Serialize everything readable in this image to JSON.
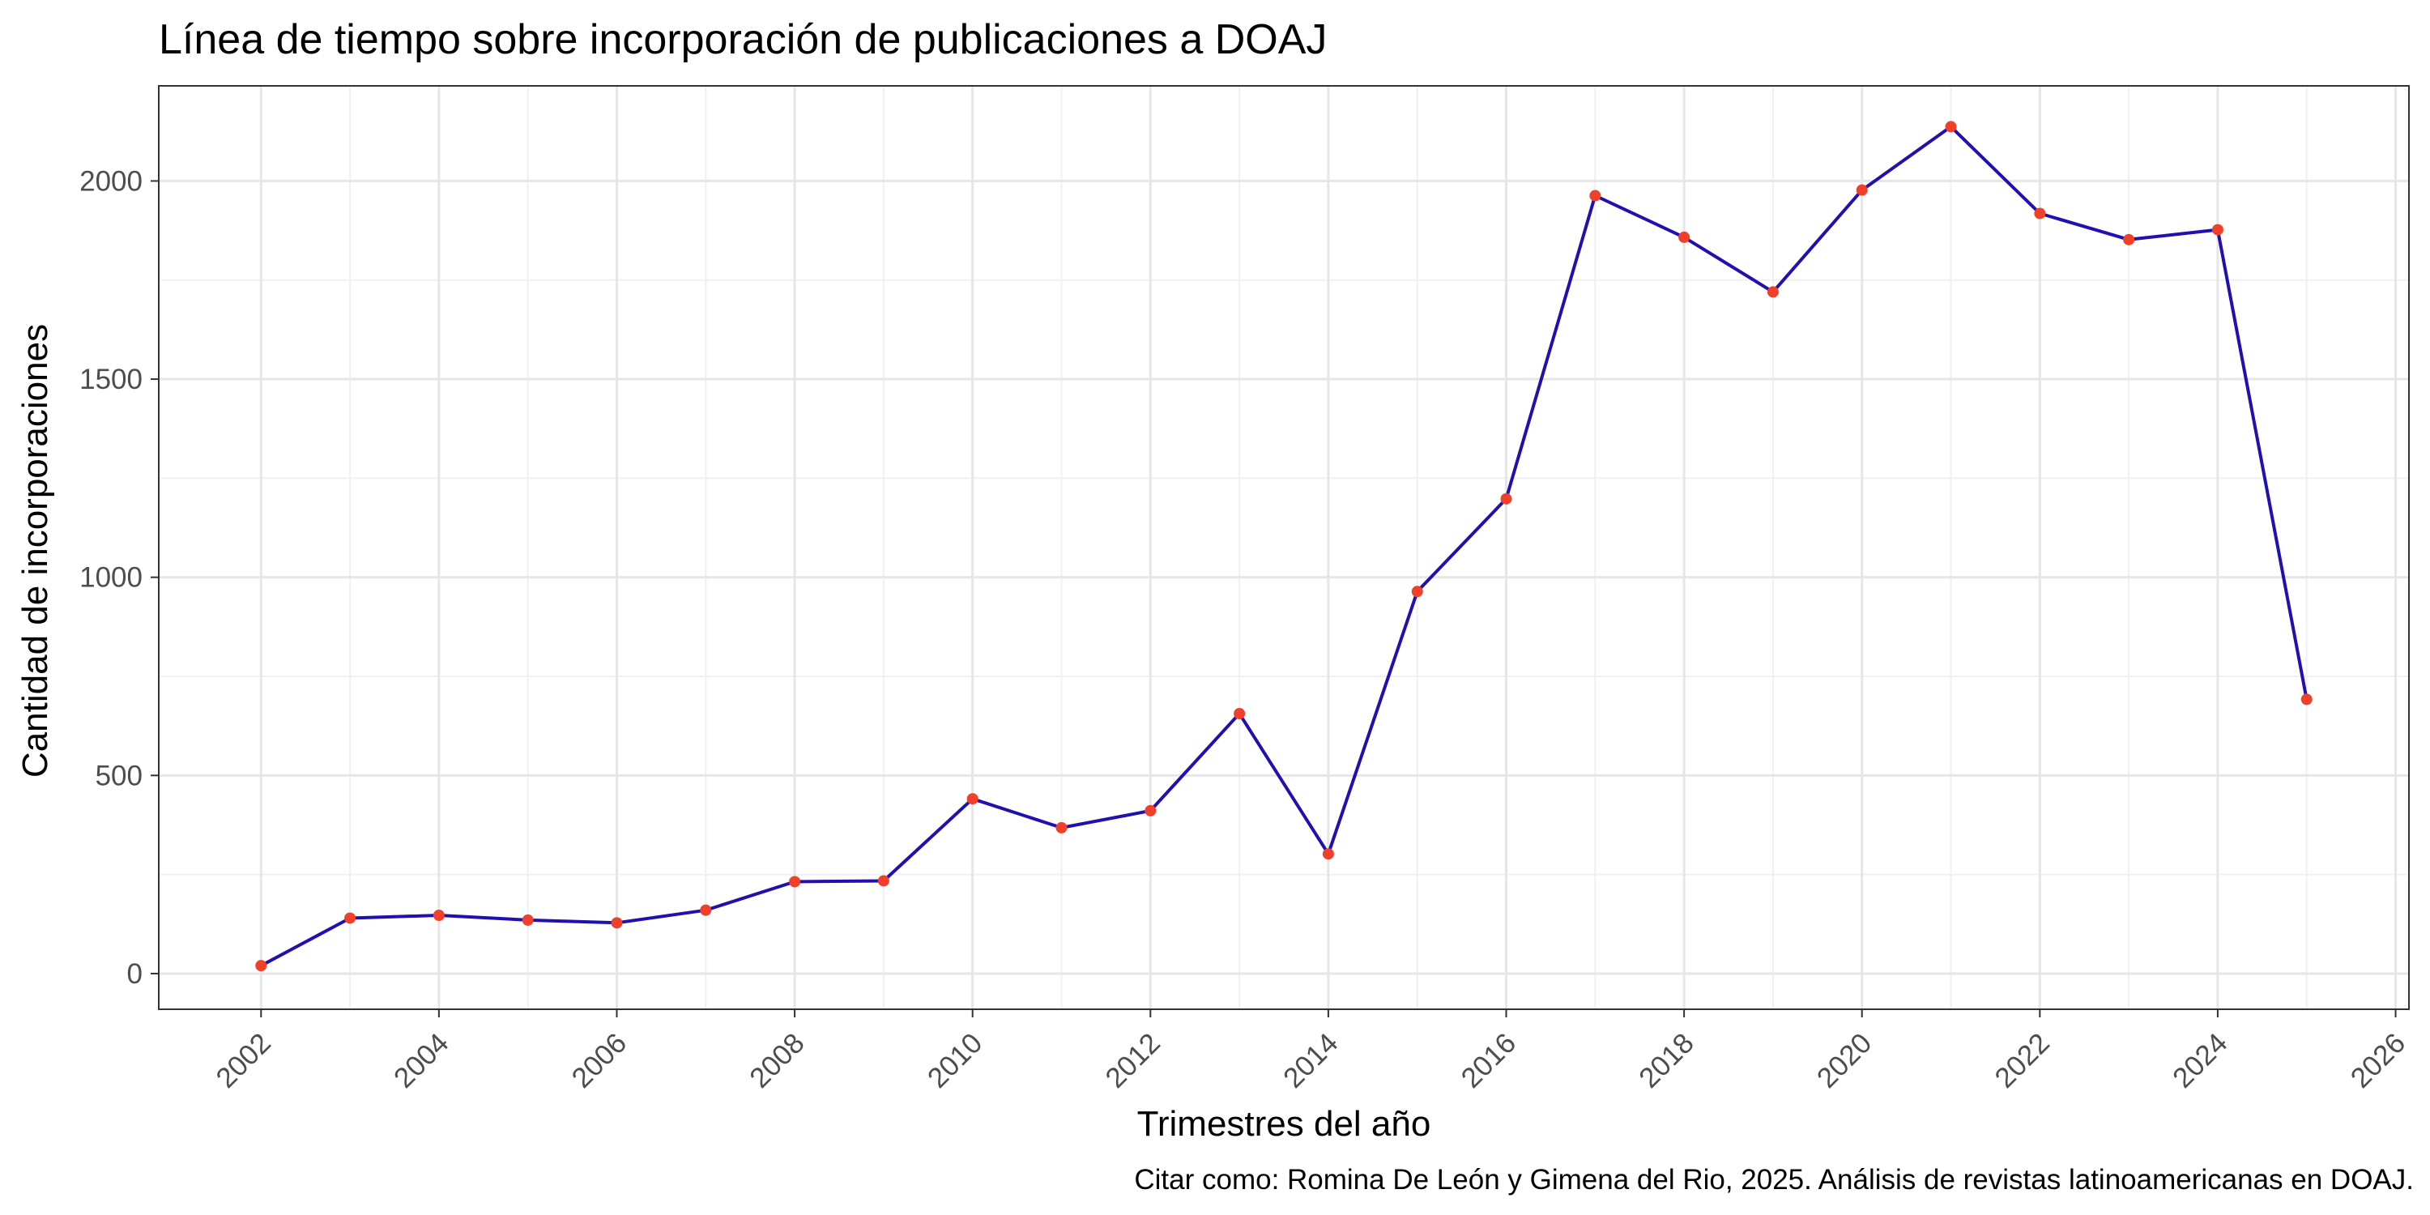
{
  "chart_data": {
    "type": "line",
    "title": "Línea de tiempo sobre incorporación de publicaciones a DOAJ",
    "xlabel": "Trimestres del año",
    "ylabel": "Cantidad de incorporaciones",
    "caption": "Citar como: Romina De León y Gimena del Rio, 2025. Análisis de revistas latinoamericanas en DOAJ.",
    "xlim": [
      2000.85,
      2026.15
    ],
    "ylim": [
      -90,
      2240
    ],
    "x_ticks": [
      2002,
      2004,
      2006,
      2008,
      2010,
      2012,
      2014,
      2016,
      2018,
      2020,
      2022,
      2024,
      2026
    ],
    "y_ticks": [
      0,
      500,
      1000,
      1500,
      2000
    ],
    "grid": true,
    "line_color": "#2010b0",
    "point_color": "#f0402a",
    "series": [
      {
        "x": [
          2002,
          2003,
          2004,
          2005,
          2006,
          2007,
          2008,
          2009,
          2010,
          2011,
          2012,
          2013,
          2014,
          2015,
          2016,
          2017,
          2018,
          2019,
          2020,
          2021,
          2022,
          2023,
          2024,
          2025
        ],
        "values": [
          20,
          140,
          147,
          135,
          128,
          160,
          232,
          234,
          441,
          368,
          411,
          656,
          302,
          964,
          1198,
          1963,
          1858,
          1720,
          1977,
          2137,
          1918,
          1852,
          1877,
          692
        ]
      }
    ]
  }
}
